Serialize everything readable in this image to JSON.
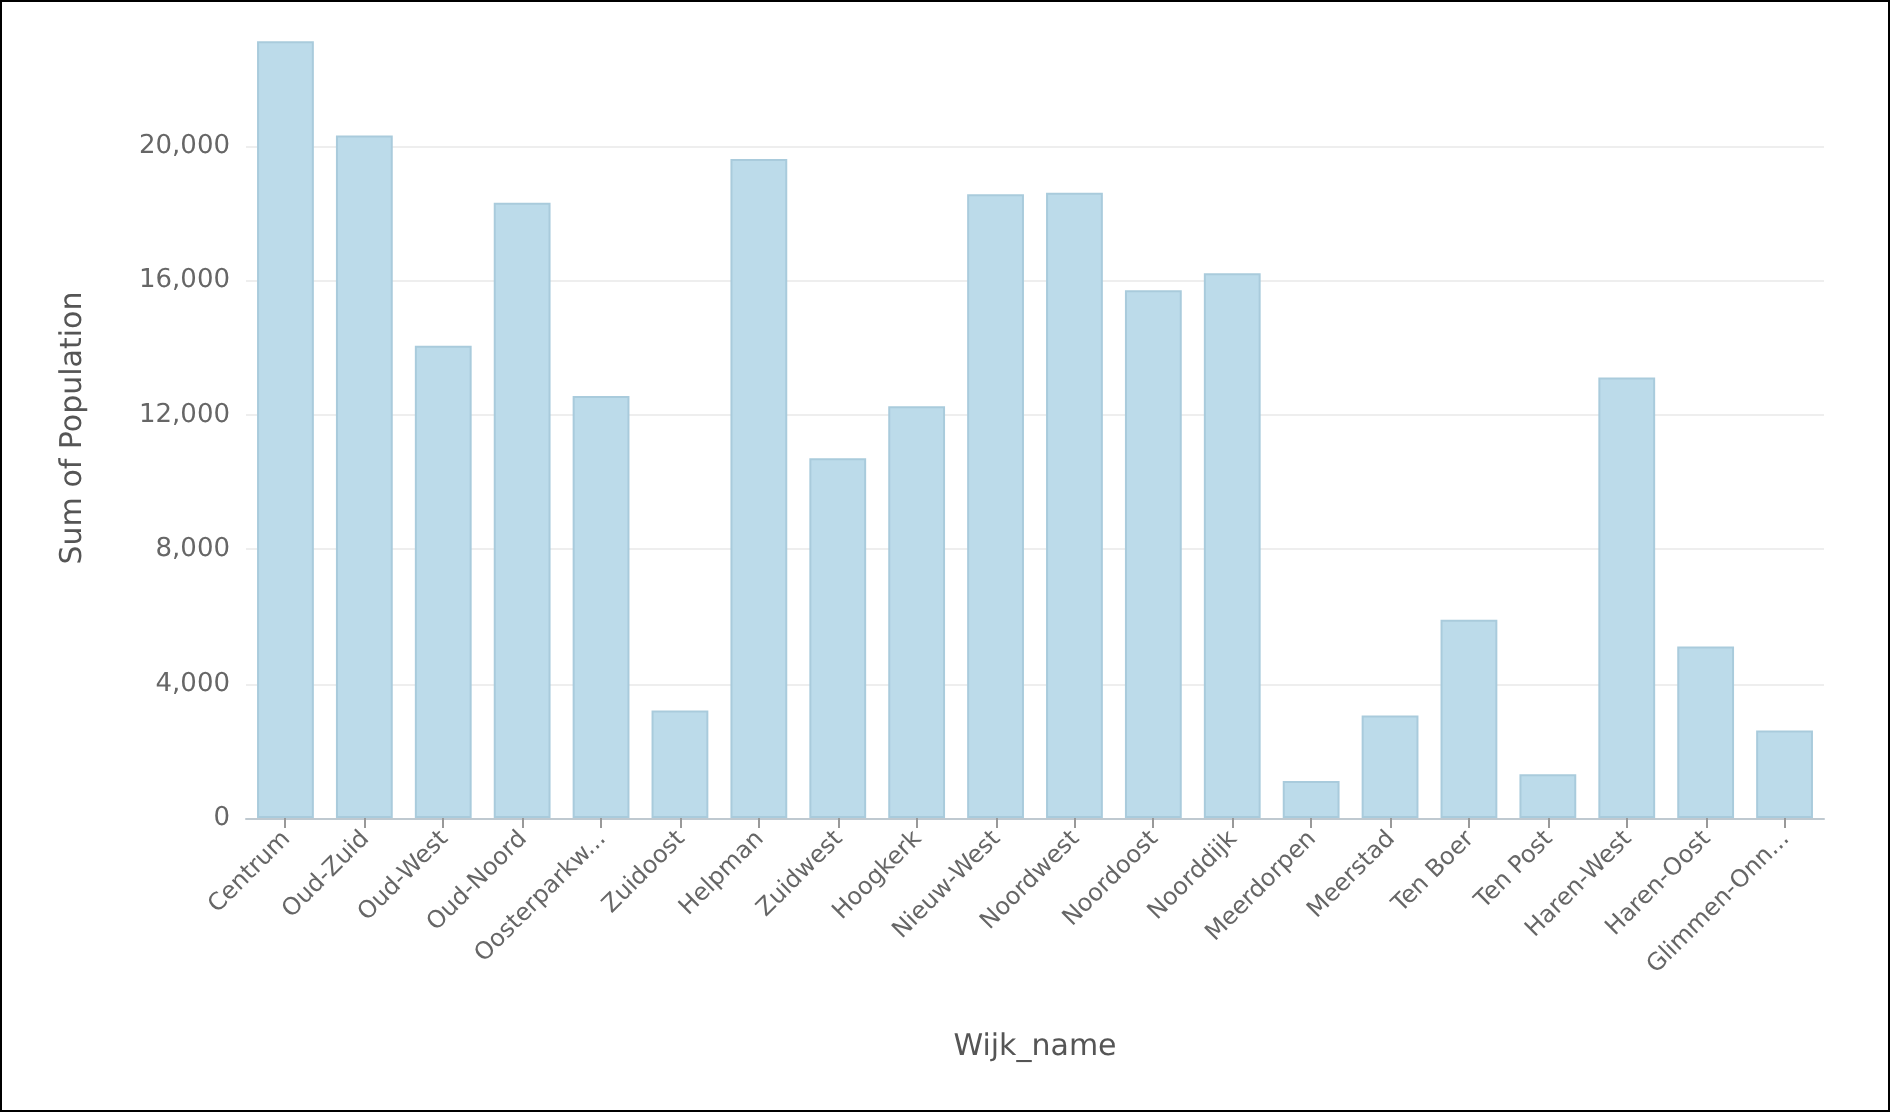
{
  "chart_data": {
    "type": "bar",
    "xlabel": "Wijk_name",
    "ylabel": "Sum of Population",
    "categories": [
      "Centrum",
      "Oud-Zuid",
      "Oud-West",
      "Oud-Noord",
      "Oosterparkw...",
      "Zuidoost",
      "Helpman",
      "Zuidwest",
      "Hoogkerk",
      "Nieuw-West",
      "Noordwest",
      "Noordoost",
      "Noorddijk",
      "Meerdorpen",
      "Meerstad",
      "Ten Boer",
      "Ten Post",
      "Haren-West",
      "Haren-Oost",
      "Glimmen-Onn..."
    ],
    "values": [
      23100,
      20300,
      14050,
      18300,
      12550,
      3200,
      19600,
      10700,
      12250,
      18550,
      18600,
      15700,
      16200,
      1100,
      3050,
      5900,
      1300,
      13100,
      5100,
      2600
    ],
    "color": "#bcdbea",
    "ylim": [
      0,
      23200
    ],
    "yticks": [
      0,
      {
        "value": 4000,
        "label": "4,000"
      },
      {
        "value": 8000,
        "label": "8,000"
      },
      {
        "value": 12000,
        "label": "12,000"
      },
      {
        "value": 16000,
        "label": "16,000"
      },
      {
        "value": 20000,
        "label": "20,000"
      }
    ],
    "grid": "y"
  }
}
